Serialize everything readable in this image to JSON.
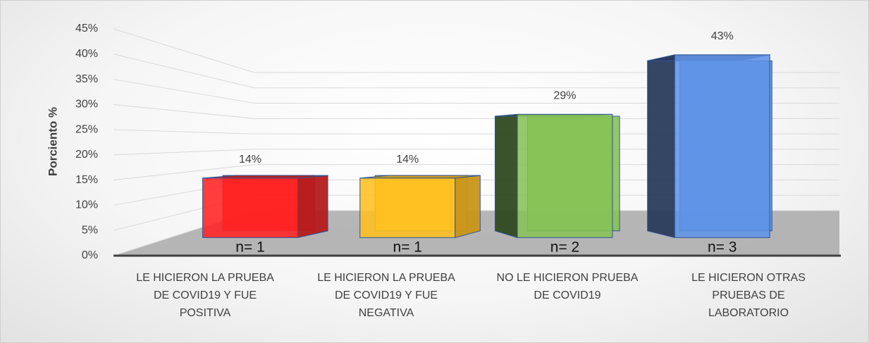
{
  "chart_data": {
    "type": "bar3d",
    "y_axis_label": "Porciento %",
    "categories": [
      "LE HICIERON LA PRUEBA DE COVID19 Y FUE POSITIVA",
      "LE HICIERON LA PRUEBA DE COVID19 Y FUE NEGATIVA",
      "NO LE HICIERON PRUEBA DE COVID19",
      "LE HICIERON OTRAS PRUEBAS DE LABORATORIO"
    ],
    "values": [
      14,
      14,
      29,
      43
    ],
    "value_labels": [
      "14%",
      "14%",
      "29%",
      "43%"
    ],
    "n_labels": [
      "n= 1",
      "n= 1",
      "n= 2",
      "n= 3"
    ],
    "colors": [
      "#ff2222",
      "#ffc020",
      "#86c257",
      "#5e93e6"
    ],
    "side_colors": [
      "#b51c1c",
      "#c9961a",
      "#2f4a22",
      "#2a3b5c"
    ],
    "ylim": [
      0,
      45
    ],
    "yticks": [
      {
        "value": 0,
        "label": "0%"
      },
      {
        "value": 5,
        "label": "5%"
      },
      {
        "value": 10,
        "label": "10%"
      },
      {
        "value": 15,
        "label": "15%"
      },
      {
        "value": 20,
        "label": "20%"
      },
      {
        "value": 25,
        "label": "25%"
      },
      {
        "value": 30,
        "label": "30%"
      },
      {
        "value": 35,
        "label": "35%"
      },
      {
        "value": 40,
        "label": "40%"
      },
      {
        "value": 45,
        "label": "45%"
      }
    ],
    "grid": true
  }
}
